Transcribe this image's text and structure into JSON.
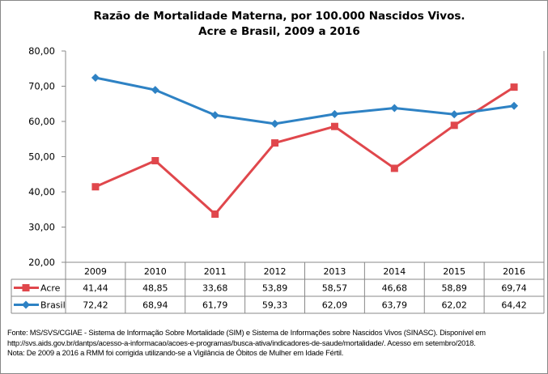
{
  "chart_data": {
    "type": "line",
    "title": "Razão de Mortalidade Materna, por 100.000 Nascidos Vivos.",
    "subtitle": "Acre e Brasil, 2009 a 2016",
    "categories": [
      "2009",
      "2010",
      "2011",
      "2012",
      "2013",
      "2014",
      "2015",
      "2016"
    ],
    "ylim": [
      20,
      80
    ],
    "yticks": [
      "20,00",
      "30,00",
      "40,00",
      "50,00",
      "60,00",
      "70,00",
      "80,00"
    ],
    "grid": false,
    "legend": "data-table",
    "series": [
      {
        "name": "Acre",
        "color": "#e0474c",
        "marker": "square",
        "values": [
          41.44,
          48.85,
          33.68,
          53.89,
          58.57,
          46.68,
          58.89,
          69.74
        ],
        "labels": [
          "41,44",
          "48,85",
          "33,68",
          "53,89",
          "58,57",
          "46,68",
          "58,89",
          "69,74"
        ]
      },
      {
        "name": "Brasil",
        "color": "#2e82c4",
        "marker": "diamond",
        "values": [
          72.42,
          68.94,
          61.79,
          59.33,
          62.09,
          63.79,
          62.02,
          64.42
        ],
        "labels": [
          "72,42",
          "68,94",
          "61,79",
          "59,33",
          "62,09",
          "63,79",
          "62,02",
          "64,42"
        ]
      }
    ]
  },
  "footnote": {
    "line1": "Fonte: MS/SVS/CGIAE - Sistema de Informação Sobre Mortalidade (SIM) e Sistema de Informações sobre Nascidos Vivos (SINASC). Disponível em",
    "line2": "http://svs.aids.gov.br/dantps/acesso-a-informacao/acoes-e-programas/busca-ativa/indicadores-de-saude/mortalidade/. Acesso em setembro/2018.",
    "line3": "Nota: De 2009 a 2016 a RMM foi corrigida utilizando-se a Vigilância de Óbitos de Mulher em Idade Fértil."
  }
}
